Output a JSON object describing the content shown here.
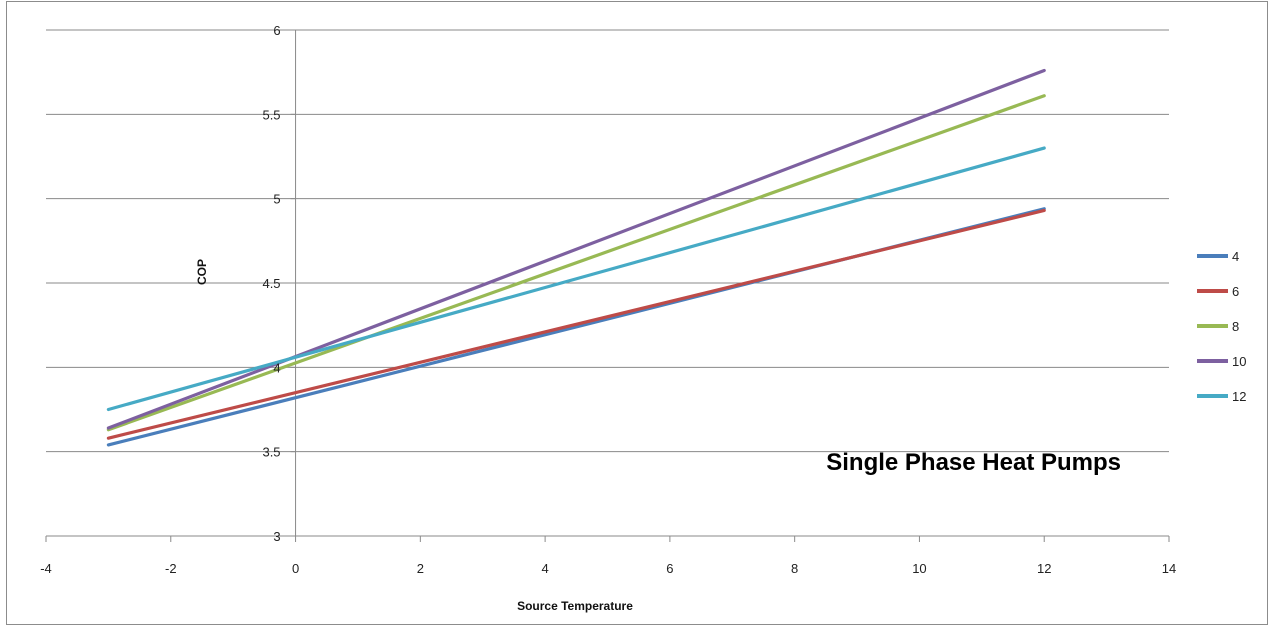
{
  "chart_data": {
    "type": "line",
    "title": "Single Phase Heat Pumps",
    "xlabel": "Source Temperature",
    "ylabel": "COP",
    "xlim": [
      -4,
      14
    ],
    "ylim": [
      3,
      6
    ],
    "xticks": [
      -4,
      -2,
      0,
      2,
      4,
      6,
      8,
      10,
      12,
      14
    ],
    "yticks": [
      3,
      3.5,
      4,
      4.5,
      5,
      5.5,
      6
    ],
    "grid": "horizontal",
    "legend_position": "right",
    "series": [
      {
        "name": "4",
        "color": "#4a7ebb",
        "x": [
          -3,
          12
        ],
        "y": [
          3.54,
          4.94
        ]
      },
      {
        "name": "6",
        "color": "#be4b48",
        "x": [
          -3,
          12
        ],
        "y": [
          3.58,
          4.93
        ]
      },
      {
        "name": "8",
        "color": "#98b954",
        "x": [
          -3,
          12
        ],
        "y": [
          3.63,
          5.61
        ]
      },
      {
        "name": "10",
        "color": "#7d60a0",
        "x": [
          -3,
          12
        ],
        "y": [
          3.64,
          5.76
        ]
      },
      {
        "name": "12",
        "color": "#46aac5",
        "x": [
          -3,
          12
        ],
        "y": [
          3.75,
          5.3
        ]
      }
    ]
  }
}
